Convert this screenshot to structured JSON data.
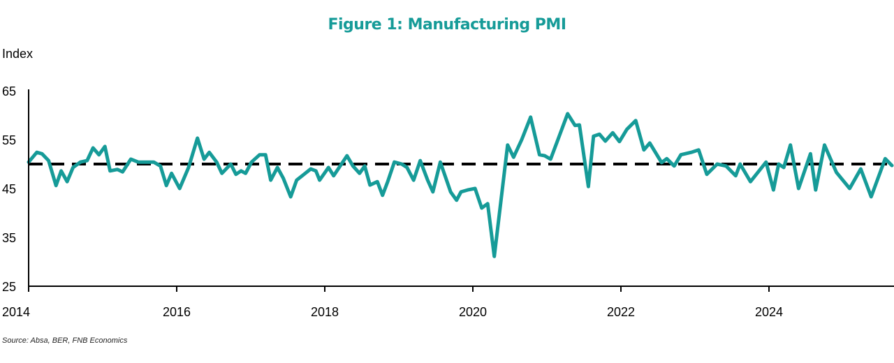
{
  "chart_data": {
    "type": "line",
    "title": "Figure 1: Manufacturing PMI",
    "ylabel": "Index",
    "xlabel": "",
    "xlim": [
      2014,
      2025.7
    ],
    "ylim": [
      25,
      65
    ],
    "yticks": [
      "65",
      "55",
      "45",
      "35",
      "25"
    ],
    "ytick_values": [
      65,
      55,
      45,
      35,
      25
    ],
    "xticks": [
      "2014",
      "2016",
      "2018",
      "2020",
      "2022",
      "2024"
    ],
    "xtick_values": [
      2014,
      2016,
      2018,
      2020,
      2022,
      2024
    ],
    "grid": false,
    "reference_line": {
      "value": 50,
      "style": "dashed",
      "color": "#000000"
    },
    "series": [
      {
        "color": "#169b98",
        "points": [
          [
            2014.0,
            50.4
          ],
          [
            2014.11,
            52.4
          ],
          [
            2014.18,
            52.1
          ],
          [
            2014.27,
            50.7
          ],
          [
            2014.37,
            45.6
          ],
          [
            2014.44,
            48.6
          ],
          [
            2014.52,
            46.4
          ],
          [
            2014.6,
            49.3
          ],
          [
            2014.7,
            50.4
          ],
          [
            2014.79,
            50.7
          ],
          [
            2014.87,
            53.3
          ],
          [
            2014.95,
            51.9
          ],
          [
            2015.03,
            53.6
          ],
          [
            2015.1,
            48.6
          ],
          [
            2015.2,
            48.9
          ],
          [
            2015.27,
            48.4
          ],
          [
            2015.38,
            51.0
          ],
          [
            2015.48,
            50.4
          ],
          [
            2015.69,
            50.4
          ],
          [
            2015.78,
            49.6
          ],
          [
            2015.86,
            45.6
          ],
          [
            2015.93,
            48.1
          ],
          [
            2016.04,
            45.0
          ],
          [
            2016.16,
            49.3
          ],
          [
            2016.28,
            55.3
          ],
          [
            2016.37,
            51.0
          ],
          [
            2016.44,
            52.4
          ],
          [
            2016.54,
            50.4
          ],
          [
            2016.61,
            48.1
          ],
          [
            2016.73,
            50.0
          ],
          [
            2016.8,
            47.9
          ],
          [
            2016.87,
            48.6
          ],
          [
            2016.93,
            48.1
          ],
          [
            2017.01,
            50.4
          ],
          [
            2017.12,
            51.9
          ],
          [
            2017.2,
            51.9
          ],
          [
            2017.27,
            46.7
          ],
          [
            2017.36,
            49.3
          ],
          [
            2017.44,
            47.1
          ],
          [
            2017.54,
            43.3
          ],
          [
            2017.62,
            46.7
          ],
          [
            2017.72,
            47.9
          ],
          [
            2017.81,
            49.0
          ],
          [
            2017.88,
            48.6
          ],
          [
            2017.93,
            46.7
          ],
          [
            2018.05,
            49.3
          ],
          [
            2018.12,
            47.6
          ],
          [
            2018.3,
            51.7
          ],
          [
            2018.38,
            49.6
          ],
          [
            2018.47,
            48.1
          ],
          [
            2018.54,
            49.6
          ],
          [
            2018.61,
            45.7
          ],
          [
            2018.71,
            46.4
          ],
          [
            2018.78,
            43.6
          ],
          [
            2018.85,
            46.4
          ],
          [
            2018.94,
            50.4
          ],
          [
            2019.04,
            50.0
          ],
          [
            2019.11,
            49.3
          ],
          [
            2019.2,
            46.7
          ],
          [
            2019.29,
            50.7
          ],
          [
            2019.39,
            46.7
          ],
          [
            2019.46,
            44.3
          ],
          [
            2019.56,
            50.4
          ],
          [
            2019.7,
            44.3
          ],
          [
            2019.78,
            42.6
          ],
          [
            2019.84,
            44.3
          ],
          [
            2019.93,
            44.7
          ],
          [
            2020.03,
            45.0
          ],
          [
            2020.12,
            41.0
          ],
          [
            2020.2,
            41.9
          ],
          [
            2020.29,
            31.1
          ],
          [
            2020.47,
            53.9
          ],
          [
            2020.55,
            51.4
          ],
          [
            2020.66,
            55.0
          ],
          [
            2020.78,
            59.6
          ],
          [
            2020.9,
            51.9
          ],
          [
            2020.97,
            51.7
          ],
          [
            2021.05,
            51.0
          ],
          [
            2021.14,
            54.6
          ],
          [
            2021.28,
            60.3
          ],
          [
            2021.38,
            57.9
          ],
          [
            2021.44,
            58.0
          ],
          [
            2021.56,
            45.4
          ],
          [
            2021.63,
            55.7
          ],
          [
            2021.71,
            56.1
          ],
          [
            2021.79,
            54.7
          ],
          [
            2021.89,
            56.4
          ],
          [
            2021.98,
            54.6
          ],
          [
            2022.08,
            57.1
          ],
          [
            2022.2,
            58.9
          ],
          [
            2022.31,
            52.9
          ],
          [
            2022.39,
            54.3
          ],
          [
            2022.55,
            50.3
          ],
          [
            2022.62,
            51.1
          ],
          [
            2022.72,
            49.6
          ],
          [
            2022.81,
            51.9
          ],
          [
            2022.95,
            52.4
          ],
          [
            2023.05,
            52.9
          ],
          [
            2023.16,
            47.9
          ],
          [
            2023.3,
            50.0
          ],
          [
            2023.42,
            49.6
          ],
          [
            2023.55,
            47.6
          ],
          [
            2023.61,
            50.0
          ],
          [
            2023.75,
            46.4
          ],
          [
            2023.96,
            50.4
          ],
          [
            2024.06,
            44.7
          ],
          [
            2024.13,
            50.0
          ],
          [
            2024.2,
            49.3
          ],
          [
            2024.29,
            53.9
          ],
          [
            2024.4,
            45.0
          ],
          [
            2024.56,
            52.1
          ],
          [
            2024.63,
            44.7
          ],
          [
            2024.75,
            53.9
          ],
          [
            2024.91,
            48.3
          ],
          [
            2025.09,
            45.0
          ],
          [
            2025.24,
            49.0
          ],
          [
            2025.38,
            43.3
          ],
          [
            2025.57,
            51.1
          ],
          [
            2025.66,
            49.7
          ]
        ]
      }
    ],
    "source": "Source: Absa, BER, FNB Economics"
  }
}
